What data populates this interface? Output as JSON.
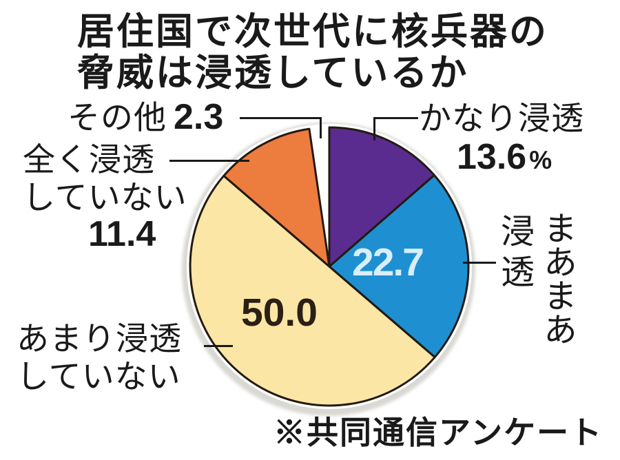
{
  "title": {
    "line1": "居住国で次世代に核兵器の",
    "line2": "脅威は浸透しているか"
  },
  "source_note": "※共同通信アンケート",
  "callouts": {
    "sonota": {
      "label": "その他"
    },
    "kanari": {
      "label": "かなり浸透"
    },
    "maamaa": {
      "column_first": "まあまあ",
      "column_second": "浸透"
    },
    "mattaku": {
      "line1": "全く浸透",
      "line2": "していない"
    },
    "amari": {
      "line1": "あまり浸透",
      "line2": "していない"
    }
  },
  "chart_data": {
    "type": "pie",
    "title": "居住国で次世代に核兵器の脅威は浸透しているか",
    "source": "共同通信アンケート",
    "unit": "%",
    "start_angle_deg": 0,
    "direction": "clockwise",
    "outline_color": "#231a12",
    "shadow_color": "#d9d8d3",
    "slices": [
      {
        "label": "かなり浸透",
        "value": 13.6,
        "display": "13.6",
        "color": "#5b2c90"
      },
      {
        "label": "まあまあ浸透",
        "value": 22.7,
        "display": "22.7",
        "color": "#1e90d2"
      },
      {
        "label": "あまり浸透していない",
        "value": 50.0,
        "display": "50.0",
        "color": "#fbe6a5"
      },
      {
        "label": "全く浸透していない",
        "value": 11.4,
        "display": "11.4",
        "color": "#ed7c3f"
      },
      {
        "label": "その他",
        "value": 2.3,
        "display": "2.3",
        "color": "#ffffff"
      }
    ]
  }
}
